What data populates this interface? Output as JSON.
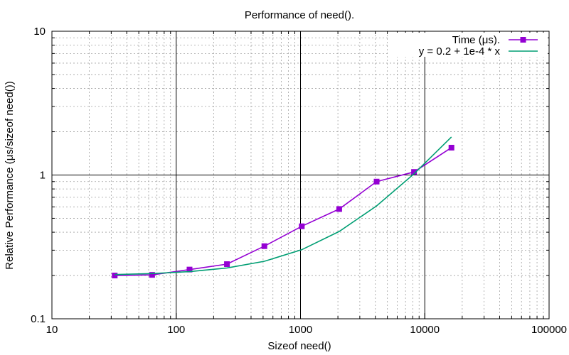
{
  "chart_data": {
    "type": "line",
    "title": "Performance of need().",
    "xlabel": "Sizeof need()",
    "ylabel": "Relative Performance (μs/sizeof need())",
    "xscale": "log",
    "yscale": "log",
    "xlim": [
      10,
      100000
    ],
    "ylim": [
      0.1,
      10
    ],
    "x_ticks": [
      "10",
      "100",
      "1000",
      "10000",
      "100000"
    ],
    "y_ticks": [
      "0.1",
      "1",
      "10"
    ],
    "grid": true,
    "legend_position": "top-right",
    "series": [
      {
        "name": "Time (μs).",
        "color": "#9400d3",
        "marker": "square",
        "x": [
          32,
          64,
          128,
          256,
          512,
          1024,
          2048,
          4096,
          8192,
          16384
        ],
        "y": [
          0.2,
          0.202,
          0.22,
          0.24,
          0.32,
          0.44,
          0.58,
          0.9,
          1.05,
          1.55
        ]
      },
      {
        "name": "y = 0.2 + 1e-4 * x",
        "color": "#009e73",
        "marker": "none",
        "x": [
          32,
          64,
          128,
          256,
          512,
          1024,
          2048,
          4096,
          8192,
          16384
        ],
        "y": [
          0.2032,
          0.2064,
          0.2128,
          0.2256,
          0.2512,
          0.3024,
          0.4048,
          0.6096,
          1.0192,
          1.8384
        ]
      }
    ]
  }
}
